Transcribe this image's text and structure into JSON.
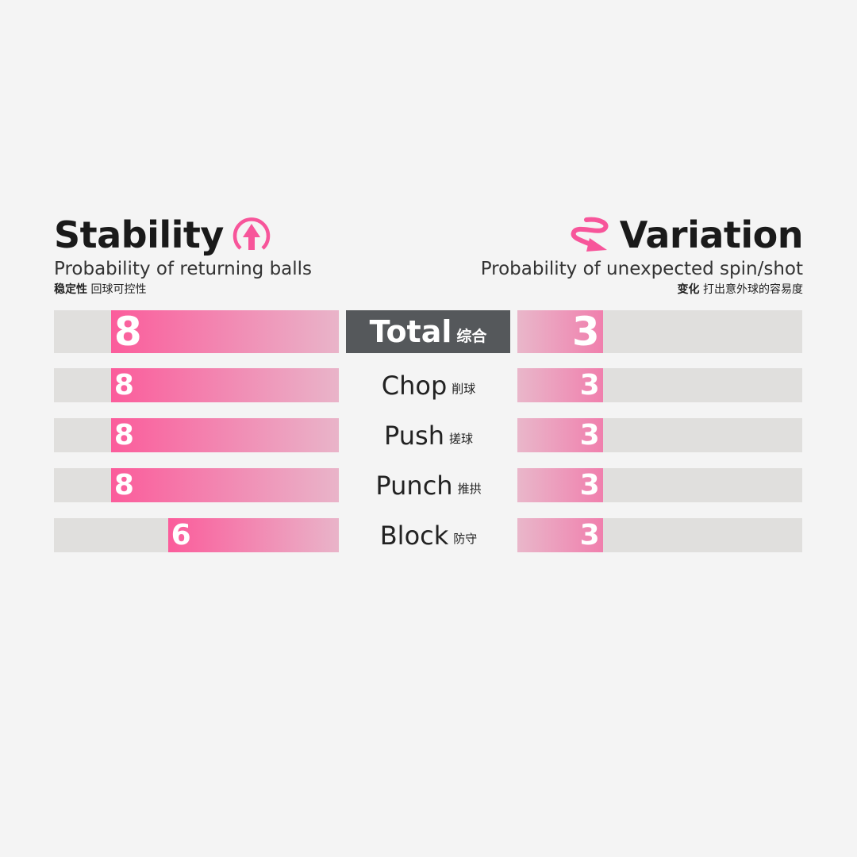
{
  "left_header": {
    "title": "Stability",
    "subtitle": "Probability of returning balls",
    "cn_bold": "稳定性",
    "cn": "回球可控性",
    "icon": "circle-up-arrow-icon"
  },
  "right_header": {
    "title": "Variation",
    "subtitle": "Probability of unexpected spin/shot",
    "cn_bold": "变化",
    "cn": "打出意外球的容易度",
    "icon": "swirl-arrow-icon"
  },
  "colors": {
    "accent": "#f7559a",
    "track": "#e0dfdd",
    "total_bg": "#55585b",
    "background": "#f4f4f4"
  },
  "chart_data": {
    "type": "bar",
    "orientation": "horizontal-butterfly",
    "xlim": [
      0,
      10
    ],
    "categories": [
      {
        "label": "Total",
        "cn": "综合"
      },
      {
        "label": "Chop",
        "cn": "削球"
      },
      {
        "label": "Push",
        "cn": "搓球"
      },
      {
        "label": "Punch",
        "cn": "推拱"
      },
      {
        "label": "Block",
        "cn": "防守"
      }
    ],
    "series": [
      {
        "name": "Stability",
        "values": [
          8,
          8,
          8,
          8,
          6
        ]
      },
      {
        "name": "Variation",
        "values": [
          3,
          3,
          3,
          3,
          3
        ]
      }
    ]
  }
}
